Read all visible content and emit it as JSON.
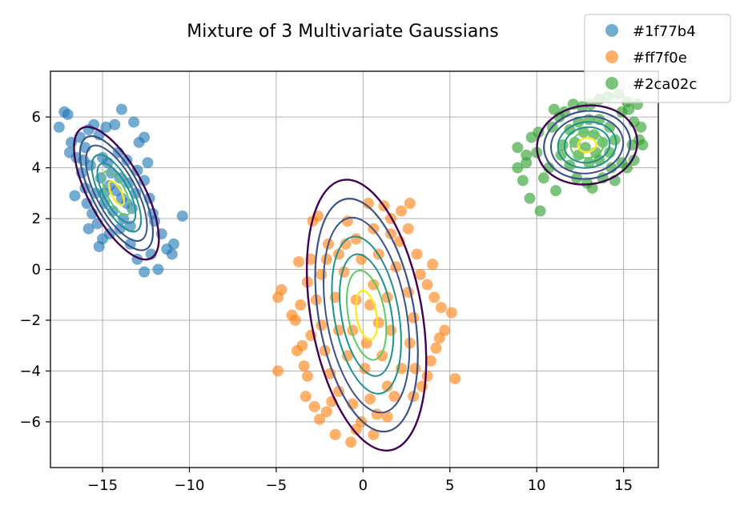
{
  "chart_data": {
    "type": "scatter",
    "title": "Mixture of 3 Multivariate Gaussians",
    "xlabel": "",
    "ylabel": "",
    "xlim": [
      -18.0,
      17.0
    ],
    "ylim": [
      -7.8,
      7.8
    ],
    "x_ticks": [
      -15,
      -10,
      -5,
      0,
      5,
      10,
      15
    ],
    "x_tick_labels": [
      "−15",
      "−10",
      "−5",
      "0",
      "5",
      "10",
      "15"
    ],
    "y_ticks": [
      -6,
      -4,
      -2,
      0,
      2,
      4,
      6
    ],
    "y_tick_labels": [
      "−6",
      "−4",
      "−2",
      "0",
      "2",
      "4",
      "6"
    ],
    "grid": true,
    "legend_position": "top-right",
    "series": [
      {
        "name": "#1f77b4",
        "color": "#1f77b4",
        "mean": [
          -14.2,
          3.0
        ],
        "points": [
          [
            -17.2,
            6.2
          ],
          [
            -17.5,
            5.6
          ],
          [
            -17.0,
            6.1
          ],
          [
            -16.8,
            5.0
          ],
          [
            -16.5,
            4.4
          ],
          [
            -16.9,
            4.6
          ],
          [
            -16.3,
            5.2
          ],
          [
            -15.8,
            5.5
          ],
          [
            -15.5,
            5.7
          ],
          [
            -16.0,
            4.8
          ],
          [
            -15.2,
            5.3
          ],
          [
            -14.8,
            5.6
          ],
          [
            -14.3,
            5.7
          ],
          [
            -13.9,
            6.3
          ],
          [
            -13.2,
            5.8
          ],
          [
            -12.9,
            5.0
          ],
          [
            -12.6,
            5.2
          ],
          [
            -16.2,
            3.8
          ],
          [
            -16.0,
            3.2
          ],
          [
            -16.6,
            2.9
          ],
          [
            -15.9,
            2.6
          ],
          [
            -15.6,
            2.2
          ],
          [
            -15.3,
            1.8
          ],
          [
            -15.0,
            1.2
          ],
          [
            -15.2,
            0.9
          ],
          [
            -14.6,
            1.4
          ],
          [
            -14.0,
            1.6
          ],
          [
            -13.4,
            1.0
          ],
          [
            -13.0,
            0.4
          ],
          [
            -12.6,
            -0.1
          ],
          [
            -12.2,
            0.6
          ],
          [
            -11.8,
            0.0
          ],
          [
            -11.3,
            0.8
          ],
          [
            -11.0,
            0.6
          ],
          [
            -10.9,
            1.0
          ],
          [
            -10.4,
            2.1
          ],
          [
            -12.0,
            1.9
          ],
          [
            -12.3,
            2.8
          ],
          [
            -12.6,
            3.5
          ],
          [
            -13.0,
            3.9
          ],
          [
            -13.6,
            4.3
          ],
          [
            -14.1,
            4.6
          ],
          [
            -14.7,
            4.2
          ],
          [
            -15.1,
            3.6
          ],
          [
            -15.4,
            3.0
          ],
          [
            -14.9,
            2.6
          ],
          [
            -14.4,
            2.3
          ],
          [
            -13.8,
            2.0
          ],
          [
            -13.3,
            2.4
          ],
          [
            -13.1,
            3.0
          ],
          [
            -13.5,
            3.4
          ],
          [
            -14.0,
            3.6
          ],
          [
            -14.5,
            3.8
          ],
          [
            -15.0,
            4.4
          ],
          [
            -15.7,
            4.1
          ],
          [
            -16.1,
            4.3
          ],
          [
            -12.4,
            4.2
          ],
          [
            -12.1,
            2.2
          ],
          [
            -11.6,
            1.4
          ],
          [
            -15.8,
            1.6
          ],
          [
            -14.2,
            3.1
          ],
          [
            -13.9,
            2.8
          ],
          [
            -14.6,
            3.3
          ],
          [
            -13.6,
            2.6
          ],
          [
            -14.9,
            3.0
          ],
          [
            -13.4,
            1.7
          ]
        ]
      },
      {
        "name": "#ff7f0e",
        "color": "#ff7f0e",
        "mean": [
          0.2,
          -1.8
        ],
        "points": [
          [
            -2.6,
            2.1
          ],
          [
            0.3,
            2.6
          ],
          [
            1.2,
            2.5
          ],
          [
            2.7,
            2.6
          ],
          [
            1.6,
            2.0
          ],
          [
            2.6,
            1.6
          ],
          [
            -1.0,
            1.0
          ],
          [
            -2.0,
            1.0
          ],
          [
            -2.1,
            0.4
          ],
          [
            -3.0,
            0.4
          ],
          [
            -3.7,
            0.3
          ],
          [
            -3.2,
            -0.5
          ],
          [
            -4.7,
            -0.8
          ],
          [
            -4.9,
            -1.1
          ],
          [
            -3.6,
            -1.4
          ],
          [
            -3.9,
            -2.0
          ],
          [
            -3.0,
            -2.6
          ],
          [
            -3.8,
            -3.2
          ],
          [
            -3.4,
            -3.8
          ],
          [
            -4.9,
            -4.0
          ],
          [
            -3.2,
            -4.2
          ],
          [
            -3.3,
            -5.0
          ],
          [
            -2.8,
            -5.4
          ],
          [
            -2.1,
            -5.6
          ],
          [
            -2.5,
            -5.9
          ],
          [
            -1.6,
            -6.5
          ],
          [
            -0.7,
            -6.8
          ],
          [
            -0.4,
            -6.3
          ],
          [
            -0.1,
            -6.0
          ],
          [
            0.6,
            -6.5
          ],
          [
            1.4,
            -5.8
          ],
          [
            2.9,
            -5.0
          ],
          [
            3.7,
            -4.2
          ],
          [
            3.0,
            -3.9
          ],
          [
            4.2,
            -3.1
          ],
          [
            4.4,
            -2.7
          ],
          [
            4.7,
            -2.4
          ],
          [
            5.1,
            -1.7
          ],
          [
            4.1,
            -1.1
          ],
          [
            3.7,
            -0.6
          ],
          [
            3.3,
            -0.2
          ],
          [
            4.0,
            0.2
          ],
          [
            3.1,
            0.6
          ],
          [
            2.1,
            1.1
          ],
          [
            1.6,
            1.4
          ],
          [
            0.6,
            1.6
          ],
          [
            -0.4,
            1.2
          ],
          [
            -1.4,
            0.6
          ],
          [
            -2.4,
            -0.2
          ],
          [
            -2.7,
            -1.2
          ],
          [
            -2.4,
            -2.2
          ],
          [
            -2.2,
            -3.2
          ],
          [
            -1.9,
            -4.1
          ],
          [
            -1.4,
            -4.8
          ],
          [
            -0.6,
            -5.3
          ],
          [
            0.4,
            -5.1
          ],
          [
            1.4,
            -4.6
          ],
          [
            2.2,
            -3.9
          ],
          [
            2.7,
            -2.9
          ],
          [
            2.9,
            -1.9
          ],
          [
            2.6,
            -0.9
          ],
          [
            1.9,
            0.1
          ],
          [
            0.9,
            0.6
          ],
          [
            -0.1,
            0.4
          ],
          [
            -1.1,
            -0.1
          ],
          [
            -1.6,
            -1.1
          ],
          [
            -1.4,
            -2.4
          ],
          [
            -0.9,
            -3.4
          ],
          [
            0.1,
            -3.9
          ],
          [
            1.1,
            -3.4
          ],
          [
            1.6,
            -2.4
          ],
          [
            1.4,
            -1.1
          ],
          [
            0.6,
            -0.6
          ],
          [
            -0.4,
            -1.2
          ],
          [
            -0.6,
            -2.4
          ],
          [
            0.2,
            -2.9
          ],
          [
            0.9,
            -2.1
          ],
          [
            0.4,
            -1.4
          ],
          [
            5.3,
            -4.3
          ],
          [
            -3.5,
            -3.0
          ],
          [
            -2.9,
            1.9
          ],
          [
            4.5,
            -1.5
          ],
          [
            -1.8,
            -5.2
          ],
          [
            0.8,
            -5.7
          ],
          [
            3.4,
            -4.6
          ],
          [
            -4.1,
            -1.8
          ],
          [
            2.2,
            2.3
          ],
          [
            -0.9,
            1.9
          ],
          [
            1.8,
            -5.0
          ],
          [
            3.9,
            -3.6
          ]
        ]
      },
      {
        "name": "#2ca02c",
        "color": "#2ca02c",
        "mean": [
          12.9,
          4.9
        ],
        "points": [
          [
            8.9,
            4.8
          ],
          [
            8.9,
            4.0
          ],
          [
            9.2,
            3.5
          ],
          [
            9.4,
            4.2
          ],
          [
            9.6,
            2.8
          ],
          [
            10.2,
            2.3
          ],
          [
            9.7,
            5.2
          ],
          [
            10.1,
            5.4
          ],
          [
            10.7,
            4.0
          ],
          [
            11.1,
            3.1
          ],
          [
            11.4,
            4.5
          ],
          [
            10.9,
            5.6
          ],
          [
            11.3,
            6.0
          ],
          [
            11.6,
            6.2
          ],
          [
            12.1,
            6.5
          ],
          [
            12.6,
            6.4
          ],
          [
            13.1,
            6.5
          ],
          [
            13.6,
            6.7
          ],
          [
            14.1,
            6.8
          ],
          [
            14.7,
            6.9
          ],
          [
            15.2,
            6.6
          ],
          [
            15.3,
            6.3
          ],
          [
            15.6,
            5.8
          ],
          [
            16.0,
            5.6
          ],
          [
            15.9,
            5.1
          ],
          [
            15.5,
            4.9
          ],
          [
            15.6,
            4.3
          ],
          [
            15.2,
            4.0
          ],
          [
            14.9,
            4.2
          ],
          [
            14.3,
            4.0
          ],
          [
            13.8,
            3.6
          ],
          [
            13.2,
            3.2
          ],
          [
            12.9,
            3.4
          ],
          [
            12.3,
            3.6
          ],
          [
            11.9,
            4.1
          ],
          [
            11.5,
            4.9
          ],
          [
            11.9,
            5.5
          ],
          [
            12.4,
            5.8
          ],
          [
            13.0,
            5.9
          ],
          [
            13.6,
            5.9
          ],
          [
            14.2,
            5.6
          ],
          [
            14.5,
            5.1
          ],
          [
            14.2,
            4.6
          ],
          [
            13.6,
            4.3
          ],
          [
            13.0,
            4.2
          ],
          [
            12.4,
            4.5
          ],
          [
            12.2,
            5.0
          ],
          [
            12.7,
            5.4
          ],
          [
            13.3,
            5.3
          ],
          [
            13.8,
            5.0
          ],
          [
            13.4,
            4.6
          ],
          [
            12.8,
            4.8
          ],
          [
            9.4,
            4.5
          ],
          [
            10.4,
            3.6
          ],
          [
            14.9,
            6.2
          ],
          [
            15.8,
            6.5
          ],
          [
            14.5,
            3.5
          ],
          [
            11.0,
            6.3
          ],
          [
            10.0,
            4.6
          ],
          [
            16.1,
            4.9
          ]
        ]
      }
    ]
  }
}
